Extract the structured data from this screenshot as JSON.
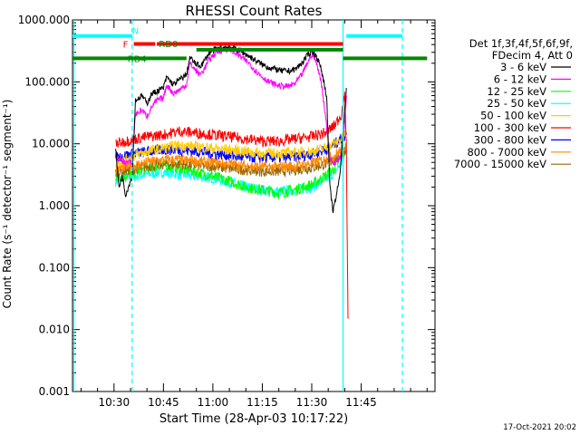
{
  "chart_data": {
    "type": "line",
    "title": "RHESSI Count Rates",
    "xlabel": "Start Time (28-Apr-03 10:17:22)",
    "ylabel": "Count Rate (s⁻¹ detector⁻¹ segment⁻¹)",
    "y_scale": "log",
    "ylim": [
      0.001,
      1000
    ],
    "xlim_minutes_of_day": [
      617.4,
      727.4
    ],
    "x_tick_labels": [
      "10:30",
      "10:45",
      "11:00",
      "11:15",
      "11:30",
      "11:45"
    ],
    "x_tick_minutes_of_day": [
      630,
      645,
      660,
      675,
      690,
      705
    ],
    "y_tick_labels": [
      "0.001",
      "0.010",
      "0.100",
      "1.000",
      "10.000",
      "100.000",
      "1000.000"
    ],
    "y_tick_values": [
      0.001,
      0.01,
      0.1,
      1,
      10,
      100,
      1000
    ],
    "legend_header": [
      "Det 1f,3f,4f,5f,6f,9f,",
      "FDecim 4, Att 0"
    ],
    "legend_placement": "right",
    "timestamp": "17-Oct-2021 20:02",
    "series": [
      {
        "name": "3 - 6 keV",
        "color": "#000000",
        "x": [
          630.5,
          631.5,
          632.5,
          633.5,
          635.5,
          636.5,
          638.5,
          640,
          641.5,
          643,
          645,
          646,
          648,
          650,
          652,
          653,
          654.5,
          656,
          657,
          659,
          661,
          663,
          665,
          667,
          669,
          671,
          673,
          675,
          677,
          679,
          681,
          683,
          685,
          687,
          689,
          690,
          691,
          692,
          693,
          694.5,
          695.5,
          696.5,
          697.5,
          698.5,
          699.5,
          700.5
        ],
        "y": [
          8,
          2,
          3,
          1.5,
          3,
          50,
          60,
          45,
          65,
          70,
          80,
          120,
          90,
          110,
          130,
          250,
          200,
          180,
          200,
          300,
          340,
          350,
          370,
          340,
          300,
          260,
          220,
          190,
          170,
          160,
          150,
          150,
          160,
          200,
          280,
          320,
          280,
          220,
          150,
          60,
          2,
          0.8,
          1.5,
          3,
          15,
          80
        ]
      },
      {
        "name": "6 - 12 keV",
        "color": "#ff00ff",
        "x": [
          630.5,
          633.5,
          635.5,
          636.5,
          638.5,
          640,
          641.5,
          643,
          645,
          646,
          648,
          650,
          652,
          653,
          654.5,
          656,
          657,
          659,
          661,
          663,
          665,
          667,
          669,
          671,
          673,
          675,
          677,
          679,
          681,
          683,
          685,
          687,
          689,
          690,
          691,
          692,
          693,
          694.5,
          695.5,
          696.5,
          697.5,
          698.5,
          699.5,
          700.5
        ],
        "y": [
          6,
          5,
          5,
          30,
          35,
          28,
          40,
          50,
          55,
          90,
          65,
          75,
          90,
          200,
          160,
          130,
          150,
          230,
          300,
          330,
          340,
          290,
          240,
          200,
          150,
          120,
          100,
          90,
          85,
          85,
          95,
          130,
          220,
          280,
          230,
          160,
          90,
          20,
          6,
          5,
          5,
          6,
          10,
          60
        ]
      },
      {
        "name": "12 - 25 keV",
        "color": "#00ff00",
        "x": [
          630.5,
          633.5,
          636.5,
          640,
          645,
          650,
          655,
          660,
          665,
          670,
          675,
          680,
          685,
          690,
          694,
          697,
          699,
          700.5
        ],
        "y": [
          3,
          3,
          3.5,
          4,
          4.5,
          4,
          3.5,
          3,
          2.5,
          2,
          1.8,
          1.6,
          1.8,
          2.2,
          3,
          4,
          6,
          9
        ]
      },
      {
        "name": "25 - 50 keV",
        "color": "#00ffff",
        "x": [
          630.5,
          633.5,
          636.5,
          640,
          645,
          650,
          655,
          660,
          665,
          670,
          675,
          680,
          685,
          690,
          694,
          697,
          699,
          700.5
        ],
        "y": [
          2.5,
          2.8,
          3,
          3.2,
          3.5,
          3.2,
          3,
          2.8,
          2.4,
          2,
          1.8,
          1.7,
          1.8,
          2,
          2.6,
          3.5,
          5,
          8
        ]
      },
      {
        "name": "50 - 100 keV",
        "color": "#ffcc00",
        "x": [
          630.5,
          633.5,
          636.5,
          640,
          645,
          650,
          655,
          660,
          665,
          670,
          675,
          680,
          685,
          690,
          694,
          697,
          699,
          700.5
        ],
        "y": [
          5,
          5.5,
          6.5,
          7.5,
          8.5,
          9.5,
          9,
          8.5,
          8,
          7.5,
          7,
          7,
          7.2,
          7.5,
          8.5,
          10,
          12,
          15
        ]
      },
      {
        "name": "100 - 300 keV",
        "color": "#ff0000",
        "x": [
          630.5,
          633.5,
          636.5,
          640,
          645,
          650,
          655,
          660,
          665,
          670,
          675,
          680,
          685,
          690,
          694,
          697,
          699,
          700,
          700.5,
          701
        ],
        "y": [
          10,
          11,
          12,
          13,
          14,
          16,
          15,
          14,
          13,
          12,
          11,
          11,
          12,
          13,
          15,
          20,
          30,
          60,
          10,
          0.015
        ]
      },
      {
        "name": "300 - 800 keV",
        "color": "#0000ff",
        "x": [
          630.5,
          633.5,
          636.5,
          640,
          645,
          650,
          655,
          660,
          665,
          670,
          675,
          680,
          685,
          690,
          694,
          697,
          699,
          700.5
        ],
        "y": [
          6,
          6.5,
          7,
          7.5,
          8,
          8,
          7.5,
          7,
          6.5,
          6,
          6,
          6,
          6.2,
          6.8,
          8,
          10,
          12,
          14
        ]
      },
      {
        "name": "800 - 7000 keV",
        "color": "#ff8800",
        "x": [
          630.5,
          633.5,
          636.5,
          640,
          645,
          650,
          655,
          660,
          665,
          670,
          675,
          680,
          685,
          690,
          694,
          697,
          699,
          700.5
        ],
        "y": [
          4,
          4.2,
          4.5,
          5,
          5.5,
          5.5,
          5.2,
          5,
          4.7,
          4.4,
          4.2,
          4.2,
          4.4,
          4.8,
          5.5,
          6.5,
          8,
          10
        ]
      },
      {
        "name": "7000 - 15000 keV",
        "color": "#996600",
        "x": [
          630.5,
          633.5,
          636.5,
          640,
          645,
          650,
          655,
          660,
          665,
          670,
          675,
          680,
          685,
          690,
          694,
          697,
          699,
          700.5
        ],
        "y": [
          3.5,
          3.7,
          4,
          4.3,
          4.7,
          4.7,
          4.5,
          4.3,
          4,
          3.8,
          3.6,
          3.6,
          3.8,
          4.1,
          4.7,
          5.5,
          6.8,
          8.5
        ]
      }
    ],
    "intervals": [
      {
        "label": "N",
        "color": "#00ffff",
        "segments": [
          [
            617.4,
            635.5
          ],
          [
            700.5,
            717.5
          ]
        ],
        "level": 550
      },
      {
        "label": "F",
        "color": "#ff0000",
        "segments": [
          [
            636,
            642.5
          ],
          [
            643,
            699.5
          ]
        ],
        "level": 410
      },
      {
        "label": "RD0",
        "color": "#008800",
        "segments": [
          [
            655,
            699.5
          ]
        ],
        "level": 330
      },
      {
        "label": "RD4",
        "color": "#008800",
        "segments": [
          [
            617.4,
            652
          ],
          [
            699.5,
            725
          ]
        ],
        "level": 240
      }
    ],
    "vertical_markers": [
      {
        "x": 617.8,
        "color": "#00ffff",
        "style": "solid"
      },
      {
        "x": 635.5,
        "color": "#00ffff",
        "style": "dashed"
      },
      {
        "x": 699.5,
        "color": "#00ffff",
        "style": "solid"
      },
      {
        "x": 717.5,
        "color": "#00ffff",
        "style": "dashed"
      }
    ]
  }
}
